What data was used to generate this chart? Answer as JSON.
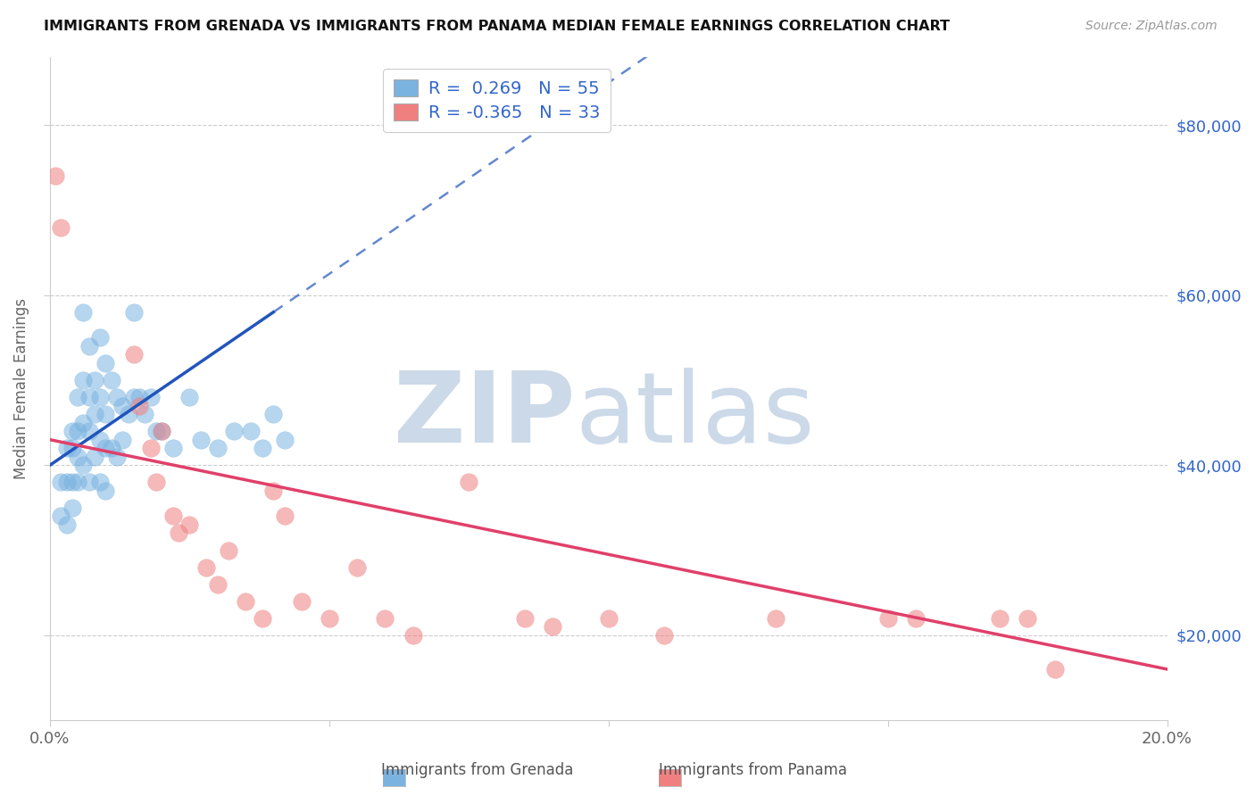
{
  "title": "IMMIGRANTS FROM GRENADA VS IMMIGRANTS FROM PANAMA MEDIAN FEMALE EARNINGS CORRELATION CHART",
  "source": "Source: ZipAtlas.com",
  "ylabel": "Median Female Earnings",
  "xlim": [
    0.0,
    0.2
  ],
  "ylim": [
    10000,
    88000
  ],
  "xticks": [
    0.0,
    0.05,
    0.1,
    0.15,
    0.2
  ],
  "xticklabels": [
    "0.0%",
    "",
    "",
    "",
    "20.0%"
  ],
  "yticks": [
    20000,
    40000,
    60000,
    80000
  ],
  "yticklabels": [
    "$20,000",
    "$40,000",
    "$60,000",
    "$80,000"
  ],
  "grenada_R": 0.269,
  "grenada_N": 55,
  "panama_R": -0.365,
  "panama_N": 33,
  "grenada_color": "#7ab3e0",
  "panama_color": "#f08080",
  "grenada_line_color": "#2255bb",
  "panama_line_color": "#e0406a",
  "background_color": "#ffffff",
  "watermark": "ZIPatlas",
  "watermark_color": "#ccd9e8",
  "grenada_x": [
    0.002,
    0.002,
    0.003,
    0.003,
    0.003,
    0.004,
    0.004,
    0.004,
    0.004,
    0.005,
    0.005,
    0.005,
    0.005,
    0.006,
    0.006,
    0.006,
    0.006,
    0.007,
    0.007,
    0.007,
    0.007,
    0.008,
    0.008,
    0.008,
    0.009,
    0.009,
    0.009,
    0.009,
    0.01,
    0.01,
    0.01,
    0.01,
    0.011,
    0.011,
    0.012,
    0.012,
    0.013,
    0.013,
    0.014,
    0.015,
    0.015,
    0.016,
    0.017,
    0.018,
    0.019,
    0.02,
    0.022,
    0.025,
    0.027,
    0.03,
    0.033,
    0.036,
    0.038,
    0.04,
    0.042
  ],
  "grenada_y": [
    38000,
    34000,
    42000,
    38000,
    33000,
    44000,
    42000,
    38000,
    35000,
    48000,
    44000,
    41000,
    38000,
    58000,
    50000,
    45000,
    40000,
    54000,
    48000,
    44000,
    38000,
    50000,
    46000,
    41000,
    55000,
    48000,
    43000,
    38000,
    52000,
    46000,
    42000,
    37000,
    50000,
    42000,
    48000,
    41000,
    47000,
    43000,
    46000,
    58000,
    48000,
    48000,
    46000,
    48000,
    44000,
    44000,
    42000,
    48000,
    43000,
    42000,
    44000,
    44000,
    42000,
    46000,
    43000
  ],
  "panama_x": [
    0.001,
    0.002,
    0.015,
    0.016,
    0.018,
    0.019,
    0.02,
    0.022,
    0.023,
    0.025,
    0.028,
    0.03,
    0.032,
    0.035,
    0.038,
    0.04,
    0.042,
    0.045,
    0.05,
    0.055,
    0.06,
    0.065,
    0.075,
    0.085,
    0.09,
    0.1,
    0.11,
    0.13,
    0.15,
    0.155,
    0.17,
    0.175,
    0.18
  ],
  "panama_y": [
    74000,
    68000,
    53000,
    47000,
    42000,
    38000,
    44000,
    34000,
    32000,
    33000,
    28000,
    26000,
    30000,
    24000,
    22000,
    37000,
    34000,
    24000,
    22000,
    28000,
    22000,
    20000,
    38000,
    22000,
    21000,
    22000,
    20000,
    22000,
    22000,
    22000,
    22000,
    22000,
    16000
  ]
}
